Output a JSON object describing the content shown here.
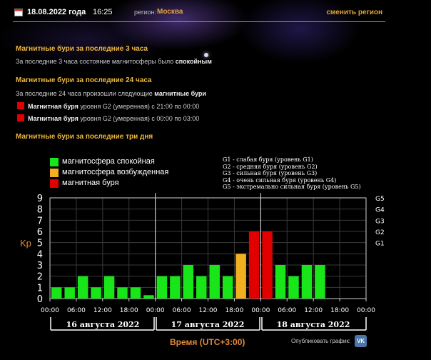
{
  "header": {
    "date": "18.08.2022 года",
    "time": "16:25",
    "region_label": "регион:",
    "region_value": "Москва",
    "change_region": "сменить регион"
  },
  "section_3h": {
    "title": "Магнитные бури за последние 3 часа",
    "text_prefix": "За последние 3 часа состояние магнитосферы было ",
    "text_bold": "спокойным"
  },
  "section_24h": {
    "title": "Магнитные бури за последние 24 часа",
    "text_prefix": "За последние 24 часа произошли следующие ",
    "text_bold": "магнитные бури",
    "storms": [
      {
        "bold": "Магнитная буря",
        "rest": " уровня G2 (умеренная) с 21:00 по 00:00"
      },
      {
        "bold": "Магнитная буря",
        "rest": " уровня G2 (умеренная) с 00:00 по 03:00"
      }
    ]
  },
  "section_3d": {
    "title": "Магнитные бури за последние три дня"
  },
  "legend": [
    {
      "label": "магнитосфера спокойная",
      "color": "#19e619"
    },
    {
      "label": "магнитосфера возбужденная",
      "color": "#f0b020"
    },
    {
      "label": "магнитная буря",
      "color": "#e00000"
    }
  ],
  "g_legend": [
    "G1 - слабая буря (уровень G1)",
    "G2 - средняя буря (уровень G2)",
    "G3 - сильная буря (уровень G3)",
    "G4 - очень сильная буря (уровень G4)",
    "G5 - экстремально сильная буря (уровень G5)"
  ],
  "chart_data": {
    "type": "bar",
    "ylabel": "Kp",
    "ylim": [
      0,
      9
    ],
    "y_ticks": [
      "0",
      "1",
      "2",
      "3",
      "4",
      "5",
      "6",
      "7",
      "8",
      "9"
    ],
    "right_ticks": [
      {
        "label": "G5",
        "kp": 9
      },
      {
        "label": "G4",
        "kp": 8
      },
      {
        "label": "G3",
        "kp": 7
      },
      {
        "label": "G2",
        "kp": 6
      },
      {
        "label": "G1",
        "kp": 5
      }
    ],
    "x_ticks": [
      "00:00",
      "06:00",
      "12:00",
      "18:00",
      "00:00",
      "06:00",
      "12:00",
      "18:00",
      "00:00",
      "06:00",
      "12:00",
      "18:00",
      "00:00"
    ],
    "days": [
      "16 августа 2022",
      "17 августа 2022",
      "18 августа 2022"
    ],
    "values": [
      1,
      1,
      2,
      1,
      2,
      1,
      1,
      0.3,
      2,
      2,
      3,
      2,
      3,
      2,
      4,
      6,
      6,
      3,
      2,
      3,
      3
    ],
    "levels": [
      "calm",
      "calm",
      "calm",
      "calm",
      "calm",
      "calm",
      "calm",
      "calm",
      "calm",
      "calm",
      "calm",
      "calm",
      "calm",
      "calm",
      "excited",
      "storm",
      "storm",
      "calm",
      "calm",
      "calm",
      "calm"
    ],
    "colors": {
      "calm": "#19e619",
      "excited": "#f0b020",
      "storm": "#e00000"
    },
    "grid": true
  },
  "footer": {
    "xlabel": "Время (UTC+3:00)",
    "publish": "Опубликовать график:",
    "vk": "VK"
  }
}
